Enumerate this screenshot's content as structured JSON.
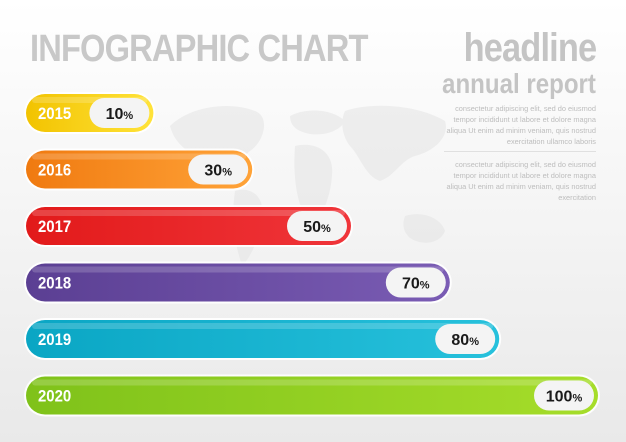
{
  "chart_data": {
    "type": "bar",
    "orientation": "horizontal",
    "title": "INFOGRAPHIC CHART",
    "categories": [
      "2015",
      "2016",
      "2017",
      "2018",
      "2019",
      "2020"
    ],
    "values": [
      10,
      30,
      50,
      70,
      80,
      100
    ],
    "value_suffix": "%",
    "xlim": [
      0,
      100
    ],
    "grid": false,
    "legend": "none",
    "colors": [
      [
        "#f2c300",
        "#ffe33a"
      ],
      [
        "#f07a10",
        "#ffa338"
      ],
      [
        "#e21a1a",
        "#f0353a"
      ],
      [
        "#5b3f93",
        "#7a5cb4"
      ],
      [
        "#0aa6c4",
        "#27c1dc"
      ],
      [
        "#7fc21a",
        "#a6dd2a"
      ]
    ]
  },
  "sidebar": {
    "headline": "headline",
    "subheadline": "annual report",
    "paragraph_1": "consectetur adipiscing elit, sed do eiusmod tempor incididunt ut labore et dolore magna aliqua Ut enim ad minim veniam, quis nostrud exercitation ullamco laboris",
    "paragraph_2": "consectetur adipiscing elit, sed do eiusmod tempor incididunt ut labore et dolore magna aliqua Ut enim ad minim veniam, quis nostrud exercitation"
  },
  "decor": {
    "background_icon": "world-map-icon"
  }
}
